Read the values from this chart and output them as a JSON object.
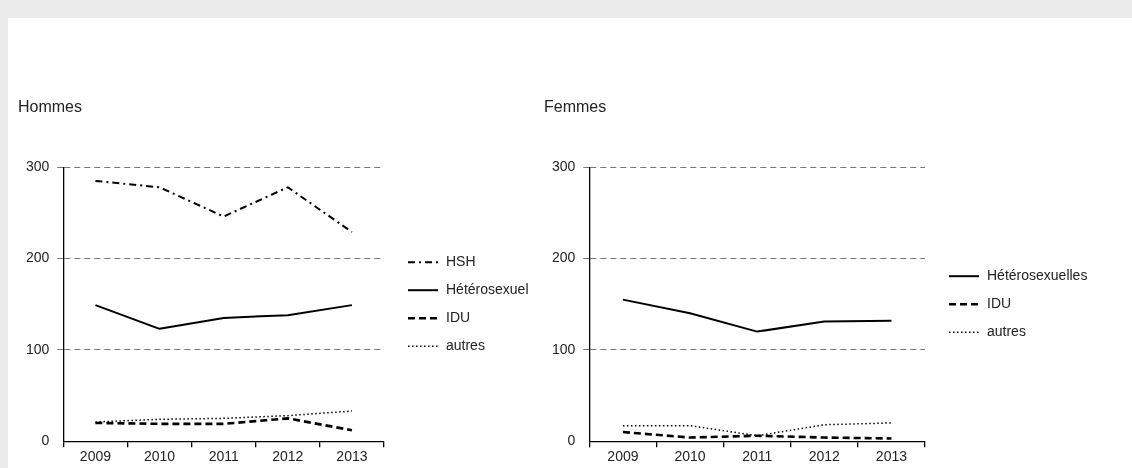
{
  "chart_data": [
    {
      "type": "line",
      "title": "Hommes",
      "categories": [
        "2009",
        "2010",
        "2011",
        "2012",
        "2013"
      ],
      "ylim": [
        0,
        300
      ],
      "yticks": [
        0,
        100,
        200,
        300
      ],
      "grid": "y",
      "legend": "right",
      "marker": "none",
      "series": [
        {
          "name": "HSH",
          "color": "#000000",
          "line_style": "dashdot",
          "values": [
            285,
            278,
            246,
            278,
            229
          ]
        },
        {
          "name": "Hétérosexuel",
          "color": "#000000",
          "line_style": "solid",
          "values": [
            149,
            123,
            135,
            138,
            149
          ]
        },
        {
          "name": "IDU",
          "color": "#000000",
          "line_style": "dashed",
          "values": [
            20,
            19,
            19,
            25,
            12
          ]
        },
        {
          "name": "autres",
          "color": "#000000",
          "line_style": "dotted",
          "values": [
            21,
            24,
            25,
            28,
            33
          ]
        }
      ]
    },
    {
      "type": "line",
      "title": "Femmes",
      "categories": [
        "2009",
        "2010",
        "2011",
        "2012",
        "2013"
      ],
      "ylim": [
        0,
        300
      ],
      "yticks": [
        0,
        100,
        200,
        300
      ],
      "grid": "y",
      "legend": "right",
      "marker": "none",
      "series": [
        {
          "name": "Hétérosexuelles",
          "color": "#000000",
          "line_style": "solid",
          "values": [
            155,
            140,
            120,
            131,
            132
          ]
        },
        {
          "name": "IDU",
          "color": "#000000",
          "line_style": "dashed",
          "values": [
            10,
            4,
            6,
            4,
            3
          ]
        },
        {
          "name": "autres",
          "color": "#000000",
          "line_style": "dotted",
          "values": [
            17,
            17,
            6,
            18,
            20
          ]
        }
      ]
    }
  ]
}
